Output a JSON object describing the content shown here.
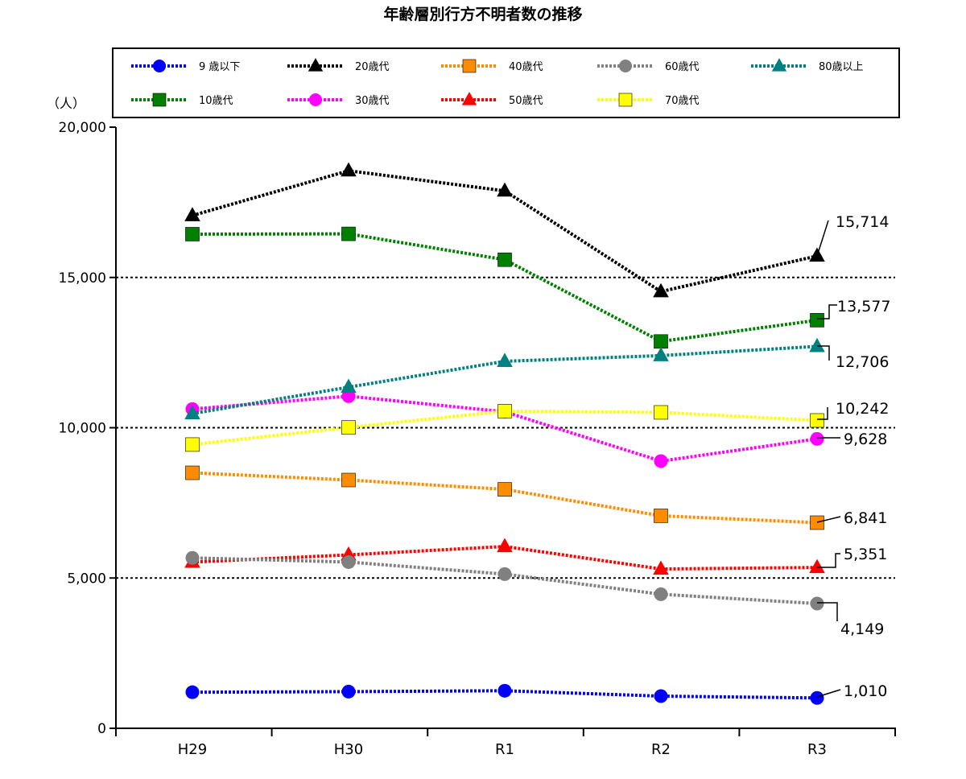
{
  "chart_data": {
    "type": "line",
    "title": "年齢層別行方不明者数の推移",
    "ylabel": "（人）",
    "xlabel": "",
    "categories": [
      "H29",
      "H30",
      "R1",
      "R2",
      "R3"
    ],
    "ylim": [
      0,
      20000
    ],
    "yticks": [
      0,
      5000,
      10000,
      15000,
      20000
    ],
    "ytick_labels": [
      "0",
      "5,000",
      "10,000",
      "15,000",
      "20,000"
    ],
    "grid": {
      "dotted_lines_at": [
        5000,
        10000,
        15000
      ]
    },
    "legend_position": "top",
    "series": [
      {
        "name": "9 歳以下",
        "marker": "circle",
        "color": "#0000ff",
        "values": [
          1200,
          1220,
          1250,
          1070,
          1010
        ],
        "end_label": "1,010"
      },
      {
        "name": "10歳代",
        "marker": "square",
        "color": "#008000",
        "values": [
          16440,
          16450,
          15590,
          12870,
          13577
        ],
        "end_label": "13,577"
      },
      {
        "name": "20歳代",
        "marker": "triangle",
        "color": "#000000",
        "values": [
          17060,
          18550,
          17880,
          14530,
          15714
        ],
        "end_label": "15,714"
      },
      {
        "name": "30歳代",
        "marker": "circle",
        "color": "#ff00ff",
        "values": [
          10620,
          11050,
          10530,
          8890,
          9628
        ],
        "end_label": "9,628"
      },
      {
        "name": "40歳代",
        "marker": "square",
        "color": "#ff8c00",
        "values": [
          8500,
          8260,
          7950,
          7070,
          6841
        ],
        "end_label": "6,841"
      },
      {
        "name": "50歳代",
        "marker": "triangle",
        "color": "#ff0000",
        "values": [
          5530,
          5770,
          6050,
          5300,
          5351
        ],
        "end_label": "5,351"
      },
      {
        "name": "60歳代",
        "marker": "circle",
        "color": "#808080",
        "values": [
          5670,
          5530,
          5130,
          4460,
          4149
        ],
        "end_label": "4,149"
      },
      {
        "name": "70歳代",
        "marker": "square",
        "color": "#ffff00",
        "values": [
          9440,
          10010,
          10550,
          10510,
          10242
        ],
        "end_label": "10,242"
      },
      {
        "name": "80歳以上",
        "marker": "triangle",
        "color": "#008080",
        "values": [
          10470,
          11350,
          12210,
          12400,
          12706
        ],
        "end_label": "12,706"
      }
    ]
  }
}
